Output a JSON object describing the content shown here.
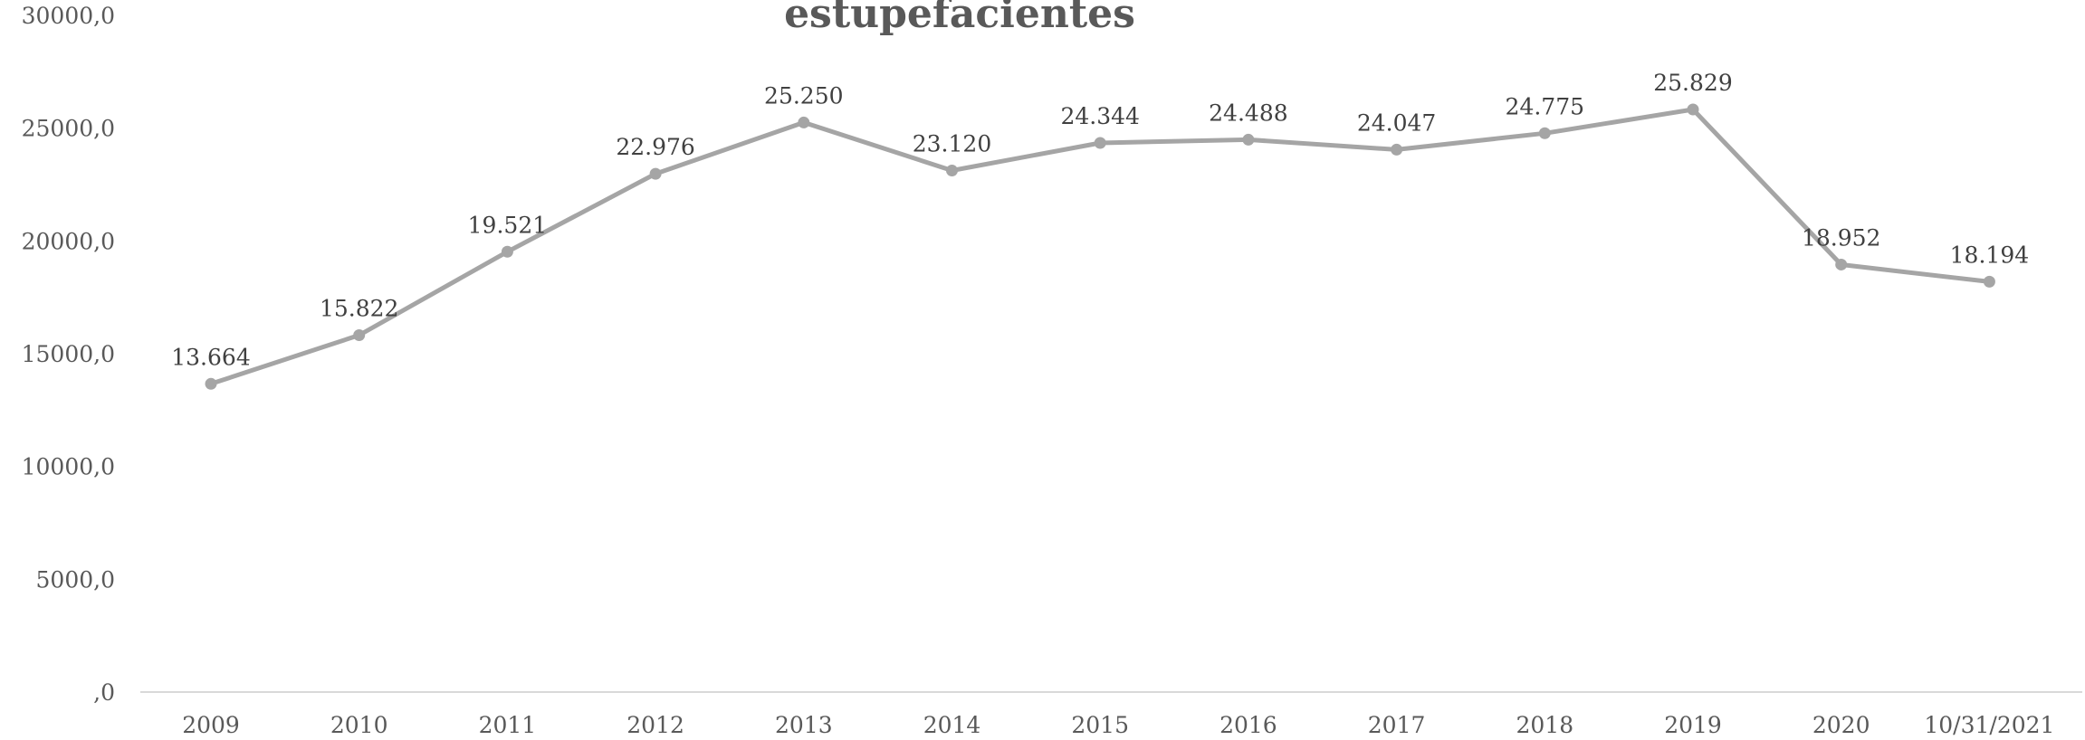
{
  "chart_data": {
    "type": "line",
    "title": "estupefacientes",
    "categories": [
      "2009",
      "2010",
      "2011",
      "2012",
      "2013",
      "2014",
      "2015",
      "2016",
      "2017",
      "2018",
      "2019",
      "2020",
      "10/31/2021"
    ],
    "series": [
      {
        "values": [
          13664,
          15822,
          19521,
          22976,
          25250,
          23120,
          24344,
          24488,
          24047,
          24775,
          25829,
          18952,
          18194
        ],
        "labels": [
          "13.664",
          "15.822",
          "19.521",
          "22.976",
          "25.250",
          "23.120",
          "24.344",
          "24.488",
          "24.047",
          "24.775",
          "25.829",
          "18.952",
          "18.194"
        ]
      }
    ],
    "yticks": [
      0,
      5000,
      10000,
      15000,
      20000,
      25000,
      30000
    ],
    "ytick_labels": [
      ",0",
      "5000,0",
      "10000,0",
      "15000,0",
      "20000,0",
      "25000,0",
      "30000,0"
    ],
    "ylim": [
      0,
      30000
    ],
    "xlabel": "",
    "ylabel": "",
    "grid": false,
    "legend": "none",
    "colors": {
      "line": "#a5a5a5",
      "axis": "#d9d9d9",
      "tick_text": "#595959",
      "label_text": "#404040",
      "title_text": "#595959"
    }
  }
}
